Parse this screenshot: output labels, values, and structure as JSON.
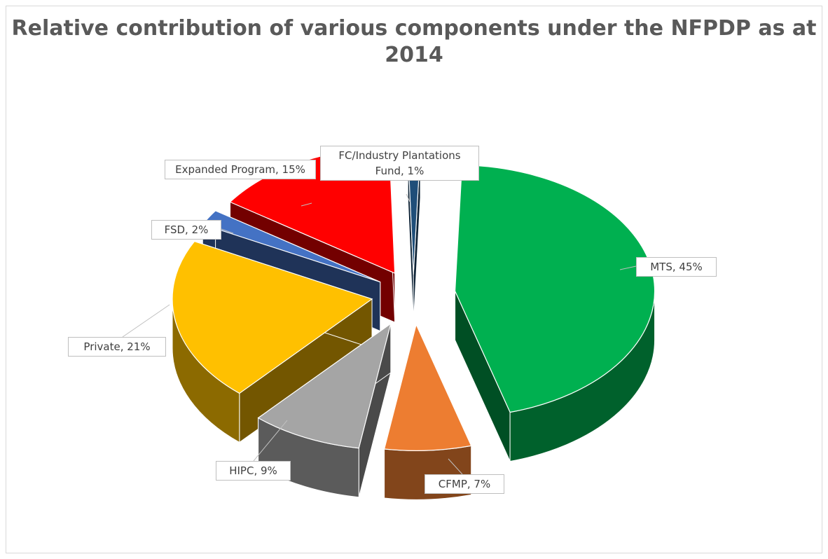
{
  "chart_data": {
    "type": "pie",
    "title": "Relative contribution of various components under the NFPDP as at 2014",
    "slices": [
      {
        "name": "MTS",
        "value": 45,
        "label": "MTS, 45%",
        "color": "#00b050"
      },
      {
        "name": "CFMP",
        "value": 7,
        "label": "CFMP, 7%",
        "color": "#ed7d31"
      },
      {
        "name": "HIPC",
        "value": 9,
        "label": "HIPC, 9%",
        "color": "#a5a5a5"
      },
      {
        "name": "Private",
        "value": 21,
        "label": "Private, 21%",
        "color": "#ffc000"
      },
      {
        "name": "FSD",
        "value": 2,
        "label": "FSD, 2%",
        "color": "#4472c4"
      },
      {
        "name": "Expanded Program",
        "value": 15,
        "label": "Expanded Program, 15%",
        "color": "#ff0000"
      },
      {
        "name": "FC/Industry Plantations Fund",
        "value": 1,
        "label": "FC/Industry Plantations Fund, 1%",
        "color": "#1f4e79"
      }
    ],
    "exploded": true,
    "legend": "none"
  }
}
